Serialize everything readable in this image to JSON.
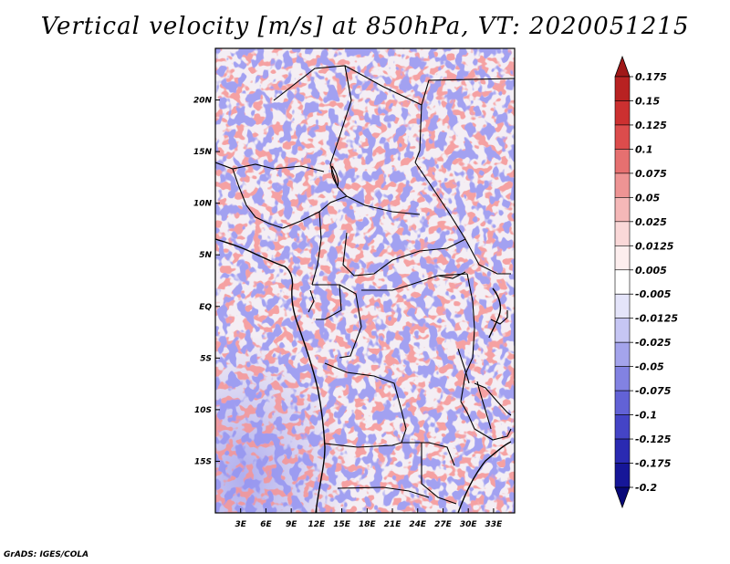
{
  "title": "Vertical velocity [m/s] at 850hPa, VT: 2020051215",
  "footer": "GrADS: IGES/COLA",
  "map": {
    "lon_range": [
      0,
      35.5
    ],
    "lat_range": [
      -20,
      25
    ],
    "x_ticks": [
      {
        "lon": 3,
        "label": "3E"
      },
      {
        "lon": 6,
        "label": "6E"
      },
      {
        "lon": 9,
        "label": "9E"
      },
      {
        "lon": 12,
        "label": "12E"
      },
      {
        "lon": 15,
        "label": "15E"
      },
      {
        "lon": 18,
        "label": "18E"
      },
      {
        "lon": 21,
        "label": "21E"
      },
      {
        "lon": 24,
        "label": "24E"
      },
      {
        "lon": 27,
        "label": "27E"
      },
      {
        "lon": 30,
        "label": "30E"
      },
      {
        "lon": 33,
        "label": "33E"
      }
    ],
    "y_ticks": [
      {
        "lat": 20,
        "label": "20N"
      },
      {
        "lat": 15,
        "label": "15N"
      },
      {
        "lat": 10,
        "label": "10N"
      },
      {
        "lat": 5,
        "label": "5N"
      },
      {
        "lat": 0,
        "label": "EQ"
      },
      {
        "lat": -5,
        "label": "5S"
      },
      {
        "lat": -10,
        "label": "10S"
      },
      {
        "lat": -15,
        "label": "15S"
      }
    ]
  },
  "colorbar": {
    "labels": [
      "0.175",
      "0.15",
      "0.125",
      "0.1",
      "0.075",
      "0.05",
      "0.025",
      "0.0125",
      "0.005",
      "-0.005",
      "-0.0125",
      "-0.025",
      "-0.05",
      "-0.075",
      "-0.1",
      "-0.125",
      "-0.175",
      "-0.2"
    ],
    "colors": [
      "#a01818",
      "#b82222",
      "#cc3030",
      "#dc4c4c",
      "#e67070",
      "#ee9494",
      "#f5b8b8",
      "#fad8d8",
      "#fdeeee",
      "#ffffff",
      "#e4e4fa",
      "#c6c6f4",
      "#a4a4ec",
      "#8282e2",
      "#6262d6",
      "#4444c6",
      "#2a2ab2",
      "#161698",
      "#080878"
    ]
  }
}
